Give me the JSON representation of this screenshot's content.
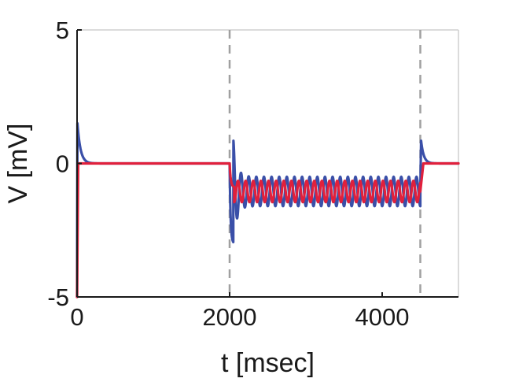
{
  "chart_data": {
    "type": "line",
    "title": "",
    "xlabel": "t  [msec]",
    "ylabel": "V  [mV]",
    "xlim": [
      0,
      5000
    ],
    "ylim": [
      -5,
      5
    ],
    "x_ticks": [
      0,
      2000,
      4000
    ],
    "y_ticks": [
      -5,
      0,
      5
    ],
    "x_tick_labels": [
      "0",
      "2000",
      "4000"
    ],
    "y_tick_labels": [
      "-5",
      "0",
      "5"
    ],
    "grid": false,
    "legend": "none",
    "event_markers_x": [
      2000,
      4500
    ],
    "series": [
      {
        "color": "#3a4fa8",
        "segments": [
          {
            "kind": "points",
            "x": [
              0,
              2,
              5
            ],
            "y": [
              -5,
              -2,
              1.5
            ]
          },
          {
            "kind": "decay",
            "x_start": 5,
            "x_end": 2000,
            "start": 1.5,
            "end": 0,
            "tau": 40
          },
          {
            "kind": "decay",
            "x_start": 2000,
            "x_end": 2050,
            "start": 0,
            "end": -3.0,
            "tau": 12
          },
          {
            "kind": "oscillation",
            "x_start": 2050,
            "x_end": 4500,
            "center": -1.05,
            "amplitude": 0.55,
            "period": 100,
            "phase_deg": 0,
            "initial_amplitude": 1.9,
            "tau": 45
          },
          {
            "kind": "points",
            "x": [
              4500,
              4510
            ],
            "y": [
              -1.05,
              0.85
            ]
          },
          {
            "kind": "decay",
            "x_start": 4510,
            "x_end": 5000,
            "start": 0.85,
            "end": 0,
            "tau": 35
          }
        ]
      },
      {
        "color": "#e0203c",
        "segments": [
          {
            "kind": "points",
            "x": [
              0,
              15,
              30
            ],
            "y": [
              -5,
              0,
              0
            ]
          },
          {
            "kind": "decay",
            "x_start": 30,
            "x_end": 2000,
            "start": 0,
            "end": 0,
            "tau": 40
          },
          {
            "kind": "decay",
            "x_start": 2000,
            "x_end": 2060,
            "start": 0,
            "end": -0.9,
            "tau": 15
          },
          {
            "kind": "oscillation",
            "x_start": 2060,
            "x_end": 4500,
            "center": -1.05,
            "amplitude": 0.4,
            "period": 100,
            "phase_deg": 180,
            "initial_amplitude": 0.4,
            "tau": 45
          },
          {
            "kind": "points",
            "x": [
              4500,
              4540
            ],
            "y": [
              -1.05,
              0
            ]
          },
          {
            "kind": "decay",
            "x_start": 4540,
            "x_end": 5000,
            "start": 0,
            "end": 0,
            "tau": 35
          }
        ]
      }
    ]
  }
}
